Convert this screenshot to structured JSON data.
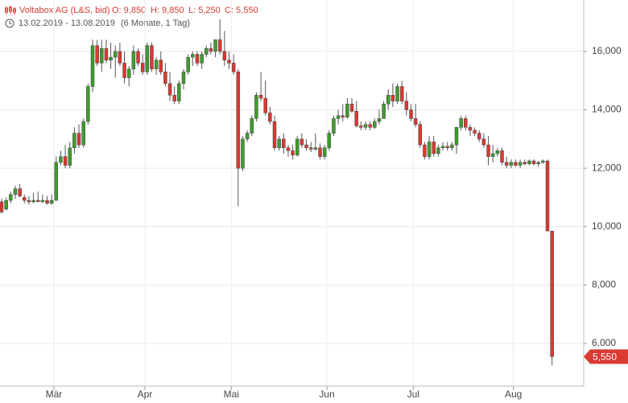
{
  "chart_data": {
    "type": "candlestick",
    "title": "Voltabox AG (L&S, bid)",
    "summary": [
      "O: 9,850",
      "H: 9,850",
      "L: 5,250",
      "C: 5,550"
    ],
    "date_range": "13.02.2019 - 13.08.2019",
    "period": "(6 Monate, 1 Tag)",
    "last_price_label": "5,550",
    "up_color": "#3f9b2f",
    "down_color": "#d93a32",
    "grid": true,
    "ylim": [
      4540,
      17760
    ],
    "yticks": [
      {
        "value": 6000,
        "label": "6,000"
      },
      {
        "value": 8000,
        "label": "8,000"
      },
      {
        "value": 10000,
        "label": "10,000"
      },
      {
        "value": 12000,
        "label": "12,000"
      },
      {
        "value": 14000,
        "label": "14,000"
      },
      {
        "value": 16000,
        "label": "16,000"
      }
    ],
    "xticks": [
      {
        "value": 12,
        "label": "Mär"
      },
      {
        "value": 32,
        "label": "Apr"
      },
      {
        "value": 51,
        "label": "Mai"
      },
      {
        "value": 72,
        "label": "Jun"
      },
      {
        "value": 91,
        "label": "Jul"
      },
      {
        "value": 113,
        "label": "Aug"
      }
    ],
    "series": [
      {
        "name": "Voltabox AG",
        "open": [
          10850,
          10600,
          10900,
          11100,
          11300,
          11000,
          10900,
          10850,
          10900,
          10850,
          10900,
          10800,
          10900,
          12200,
          12400,
          12100,
          12700,
          13200,
          12800,
          13600,
          14800,
          16200,
          15600,
          16100,
          15700,
          15800,
          16000,
          15600,
          15100,
          15400,
          16000,
          15600,
          15300,
          16200,
          15400,
          15700,
          15300,
          14900,
          14500,
          14300,
          14900,
          15300,
          15800,
          15900,
          15600,
          15900,
          16100,
          16000,
          16400,
          16000,
          15700,
          15600,
          15300,
          12000,
          13000,
          13200,
          13700,
          14500,
          14400,
          13900,
          13600,
          12700,
          13000,
          12700,
          12600,
          12450,
          13000,
          12800,
          12700,
          12650,
          12700,
          12400,
          12700,
          13200,
          13700,
          13800,
          13750,
          14200,
          13950,
          13450,
          13400,
          13500,
          13400,
          13600,
          13700,
          14200,
          14500,
          14300,
          14800,
          14300,
          14000,
          13700,
          13500,
          12800,
          12400,
          12900,
          12500,
          12700,
          12750,
          12700,
          12800,
          13400,
          13700,
          13400,
          13300,
          13200,
          13000,
          12800,
          12400,
          12500,
          12600,
          12200,
          12100,
          12200,
          12100,
          12200,
          12150,
          12250,
          12150,
          12200,
          12250,
          9850
        ],
        "high": [
          10950,
          11000,
          11200,
          11400,
          11450,
          11100,
          11050,
          11150,
          11200,
          11100,
          11050,
          11100,
          12400,
          12600,
          12800,
          12900,
          13400,
          13500,
          13700,
          14900,
          16400,
          16400,
          16400,
          16400,
          16300,
          16200,
          16300,
          16000,
          15500,
          16200,
          16100,
          15900,
          16300,
          16300,
          15800,
          16000,
          15600,
          15300,
          14800,
          15000,
          15400,
          15900,
          16000,
          16000,
          16000,
          16200,
          16300,
          16400,
          17100,
          16700,
          16000,
          15900,
          15400,
          13100,
          13300,
          13800,
          14600,
          15300,
          15000,
          14100,
          13800,
          13100,
          13200,
          12800,
          12800,
          13100,
          13200,
          13000,
          12900,
          13200,
          12850,
          12800,
          13300,
          13800,
          14000,
          14200,
          14400,
          14400,
          14300,
          13600,
          13600,
          13600,
          13700,
          14000,
          14300,
          14700,
          14900,
          14900,
          15000,
          14600,
          14200,
          14200,
          13600,
          12900,
          13100,
          13100,
          12800,
          12900,
          12900,
          12900,
          13400,
          13800,
          13800,
          13500,
          13400,
          13300,
          13200,
          13100,
          12800,
          12700,
          12700,
          12400,
          12300,
          12300,
          12300,
          12300,
          12300,
          12300,
          12250,
          12300,
          12300,
          9850
        ],
        "low": [
          10450,
          10550,
          10800,
          10950,
          11000,
          10800,
          10750,
          10800,
          10850,
          10800,
          10750,
          10750,
          10900,
          12100,
          12000,
          12000,
          12500,
          12700,
          12700,
          13500,
          14600,
          15500,
          15300,
          15600,
          15400,
          15100,
          15500,
          14900,
          14800,
          15200,
          15500,
          15200,
          15200,
          15300,
          15200,
          15200,
          14800,
          14300,
          14200,
          14200,
          14700,
          15200,
          15500,
          15500,
          15400,
          15800,
          15900,
          15800,
          15900,
          15500,
          15400,
          15200,
          10700,
          11900,
          12900,
          13100,
          13600,
          14300,
          13800,
          13500,
          12600,
          12600,
          12500,
          12400,
          12300,
          12400,
          12700,
          12600,
          12550,
          12600,
          12300,
          12300,
          12600,
          13100,
          13500,
          13600,
          13700,
          13900,
          13400,
          13300,
          13300,
          13300,
          13350,
          13500,
          13700,
          14000,
          14100,
          14200,
          14200,
          13800,
          13600,
          13400,
          12700,
          12300,
          12300,
          12400,
          12400,
          12600,
          12600,
          12600,
          12500,
          13300,
          13300,
          13100,
          13100,
          12900,
          12700,
          12100,
          12200,
          12400,
          12100,
          12000,
          12000,
          12050,
          12000,
          12100,
          12100,
          12100,
          12050,
          12150,
          9850,
          5250
        ],
        "close": [
          10500,
          10900,
          11100,
          11300,
          11050,
          10900,
          10850,
          10900,
          10850,
          10900,
          10800,
          10900,
          12200,
          12400,
          12100,
          12700,
          13200,
          12800,
          13600,
          14800,
          16200,
          15600,
          16100,
          15700,
          15800,
          16000,
          15600,
          15100,
          15400,
          16000,
          15600,
          15300,
          16200,
          15400,
          15700,
          15300,
          14900,
          14500,
          14300,
          14900,
          15300,
          15800,
          15900,
          15600,
          15900,
          16100,
          16000,
          16400,
          16000,
          15700,
          15600,
          15300,
          12000,
          13000,
          13200,
          13700,
          14500,
          14400,
          13900,
          13600,
          12700,
          13000,
          12700,
          12600,
          12450,
          13000,
          12800,
          12700,
          12650,
          12700,
          12400,
          12700,
          13200,
          13700,
          13800,
          13750,
          14200,
          13950,
          13450,
          13400,
          13500,
          13400,
          13600,
          13700,
          14200,
          14500,
          14300,
          14800,
          14300,
          14000,
          13700,
          13500,
          12800,
          12400,
          12900,
          12500,
          12700,
          12750,
          12700,
          12800,
          13400,
          13700,
          13400,
          13300,
          13200,
          13000,
          12800,
          12400,
          12500,
          12600,
          12200,
          12100,
          12200,
          12100,
          12200,
          12150,
          12250,
          12150,
          12200,
          12250,
          9850,
          5550
        ]
      }
    ]
  }
}
